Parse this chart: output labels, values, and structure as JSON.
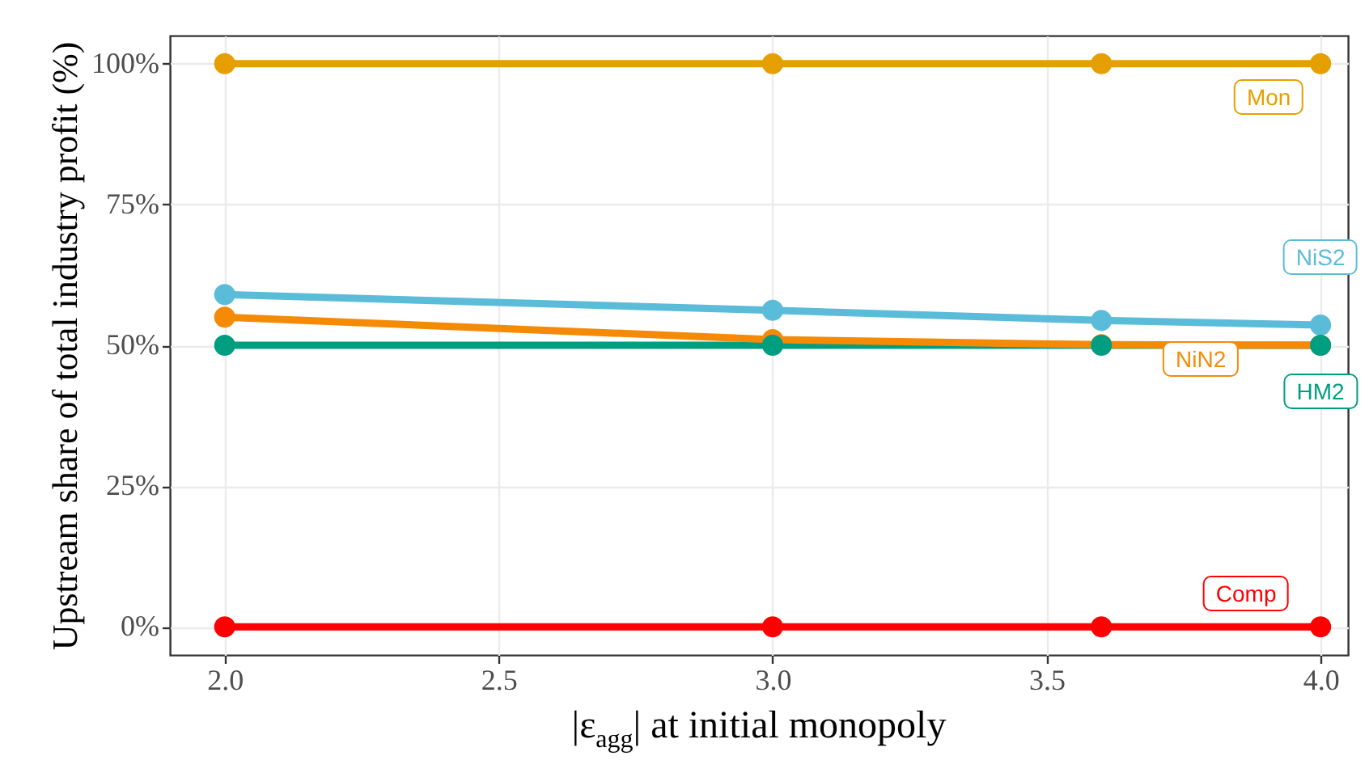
{
  "chart_data": {
    "type": "line",
    "xlabel": "|ε$_{agg}$| at initial monopoly",
    "ylabel": "Upstream share of total industry profit (%)",
    "x": [
      2.0,
      3.0,
      3.6,
      4.0
    ],
    "series": [
      {
        "name": "Mon",
        "color": "#e69f00",
        "values": [
          100,
          100,
          100,
          100
        ]
      },
      {
        "name": "NiS2",
        "color": "#5bbcd9",
        "values": [
          59.0,
          56.2,
          54.4,
          53.6
        ]
      },
      {
        "name": "NiN2",
        "color": "#f58a07",
        "values": [
          55.0,
          51.0,
          50.1,
          50.0
        ]
      },
      {
        "name": "HM2",
        "color": "#009e80",
        "values": [
          50,
          50,
          50,
          50
        ]
      },
      {
        "name": "Comp",
        "color": "#ff0000",
        "values": [
          0,
          0,
          0,
          0
        ]
      }
    ],
    "xlim": [
      1.9,
      4.05
    ],
    "xticks": [
      {
        "value": 2,
        "label": "2.0"
      },
      2.5,
      {
        "value": 3,
        "label": "3.0"
      },
      3.5,
      {
        "value": 4,
        "label": "4.0"
      }
    ],
    "ylim": [
      -5,
      105
    ],
    "yticks": [
      {
        "value": 0,
        "label": "0%"
      },
      {
        "value": 25,
        "label": "25%"
      },
      {
        "value": 50,
        "label": "50%"
      },
      {
        "value": 75,
        "label": "75%"
      },
      {
        "value": 100,
        "label": "100%"
      }
    ],
    "grid": true,
    "legend": false,
    "marker": "circle",
    "line_style": "solid"
  }
}
